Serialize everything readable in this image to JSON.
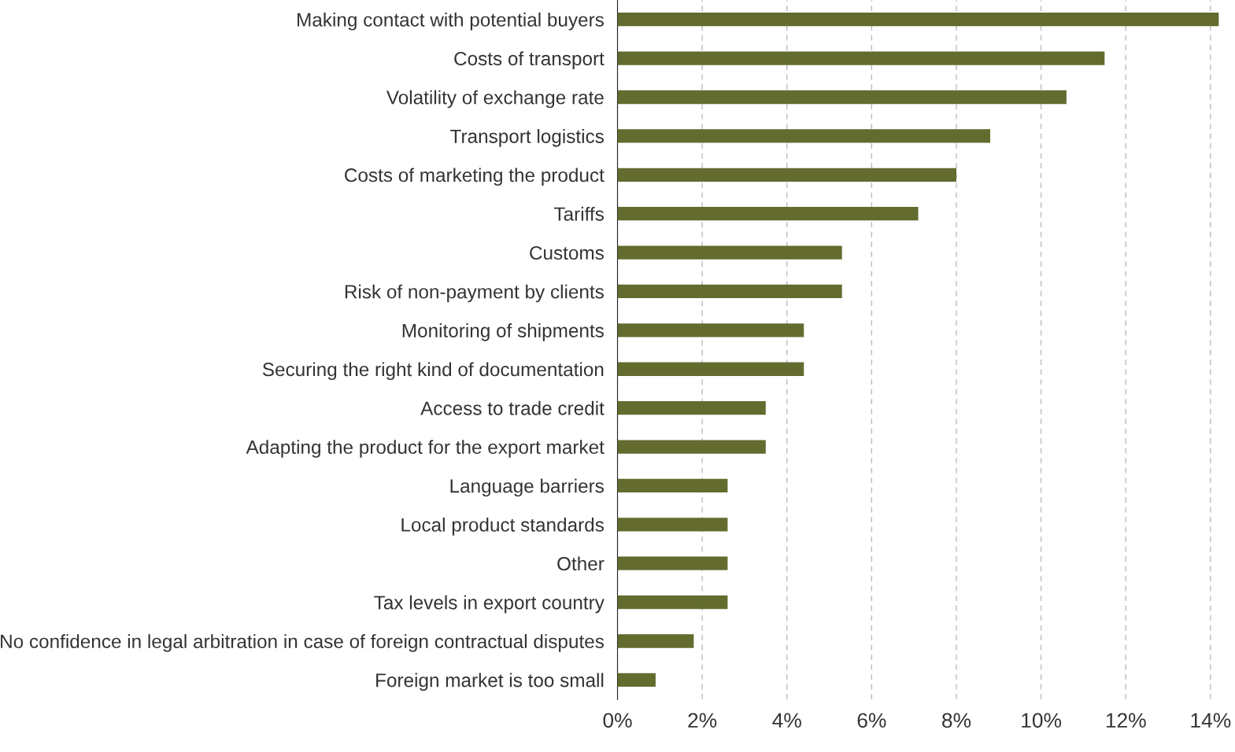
{
  "chart_data": {
    "type": "bar",
    "orientation": "horizontal",
    "categories": [
      "Making contact with potential buyers",
      "Costs of transport",
      "Volatility of exchange rate",
      "Transport logistics",
      "Costs of marketing the product",
      "Tariffs",
      "Customs",
      "Risk of non-payment by clients",
      "Monitoring of shipments",
      "Securing the right kind of documentation",
      "Access to trade credit",
      "Adapting the product for the export market",
      "Language barriers",
      "Local product standards",
      "Other",
      "Tax levels in export country",
      "No confidence in legal arbitration in case of foreign contractual disputes",
      "Foreign market is too small"
    ],
    "values": [
      14.2,
      11.5,
      10.6,
      8.8,
      8.0,
      7.1,
      5.3,
      5.3,
      4.4,
      4.4,
      3.5,
      3.5,
      2.6,
      2.6,
      2.6,
      2.6,
      1.8,
      0.9
    ],
    "color": "#636b2f",
    "xlim": [
      0,
      14.2
    ],
    "xticks": [
      {
        "value": 0,
        "label": "0%"
      },
      {
        "value": 2,
        "label": "2%"
      },
      {
        "value": 4,
        "label": "4%"
      },
      {
        "value": 6,
        "label": "6%"
      },
      {
        "value": 8,
        "label": "8%"
      },
      {
        "value": 10,
        "label": "10%"
      },
      {
        "value": 12,
        "label": "12%"
      },
      {
        "value": 14,
        "label": "14%"
      }
    ],
    "grid": "x"
  }
}
